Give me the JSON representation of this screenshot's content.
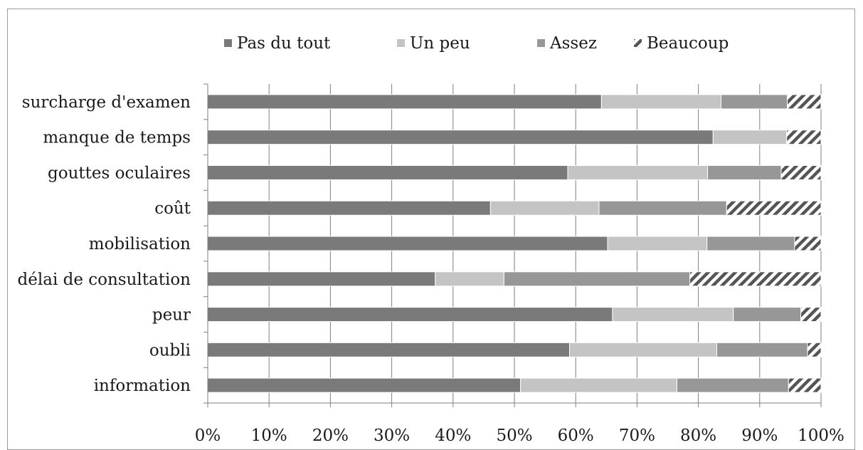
{
  "chart_data": {
    "type": "bar",
    "orientation": "horizontal",
    "stacked": "percent",
    "categories": [
      "surcharge d'examen",
      "manque de temps",
      "gouttes oculaires",
      "coût",
      "mobilisation",
      "délai de consultation",
      "peur",
      "oubli",
      "information"
    ],
    "series": [
      {
        "name": "Pas du tout",
        "color": "#7a7a7a",
        "pattern": "solid",
        "values": [
          64.2,
          82.4,
          58.7,
          46.1,
          65.2,
          37.1,
          66.0,
          59.0,
          51.0
        ]
      },
      {
        "name": "Un peu",
        "color": "#c4c4c4",
        "pattern": "solid",
        "values": [
          19.5,
          12.0,
          22.8,
          17.7,
          16.2,
          11.2,
          19.7,
          24.0,
          25.5
        ]
      },
      {
        "name": "Assez",
        "color": "#979797",
        "pattern": "solid",
        "values": [
          10.8,
          0.0,
          12.0,
          20.8,
          14.3,
          30.3,
          11.0,
          14.8,
          18.2
        ]
      },
      {
        "name": "Beaucoup",
        "color": "#555555",
        "pattern": "diagonal-hatch",
        "values": [
          5.5,
          5.6,
          6.5,
          15.4,
          4.3,
          21.4,
          3.3,
          2.2,
          5.3
        ]
      }
    ],
    "x_ticks": [
      "0%",
      "10%",
      "20%",
      "30%",
      "40%",
      "50%",
      "60%",
      "70%",
      "80%",
      "90%",
      "100%"
    ],
    "xlim": [
      0,
      100
    ],
    "grid": "vertical",
    "legend": "top",
    "title": "",
    "xlabel": "",
    "ylabel": ""
  }
}
